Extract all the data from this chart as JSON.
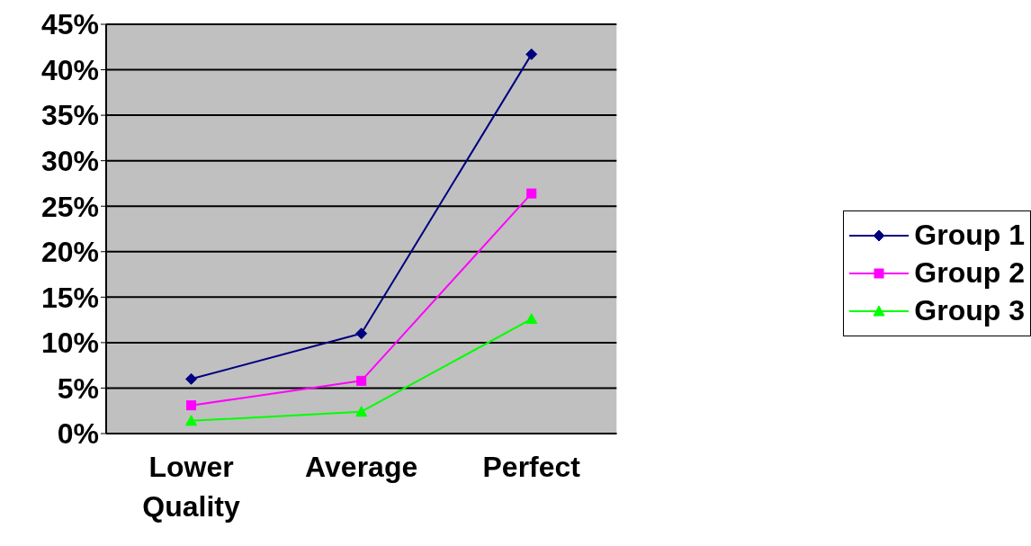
{
  "chart_data": {
    "type": "line",
    "categories": [
      "Lower Quality",
      "Average",
      "Perfect"
    ],
    "series": [
      {
        "name": "Group 1",
        "color": "#000080",
        "marker": "diamond",
        "values": [
          6.0,
          11.0,
          41.7
        ]
      },
      {
        "name": "Group 2",
        "color": "#ff00ff",
        "marker": "square",
        "values": [
          3.1,
          5.8,
          26.4
        ]
      },
      {
        "name": "Group 3",
        "color": "#00ff00",
        "marker": "triangle",
        "values": [
          1.4,
          2.4,
          12.6
        ]
      }
    ],
    "ylim": [
      0,
      45
    ],
    "yticks": [
      {
        "value": 0,
        "label": "0%"
      },
      {
        "value": 5,
        "label": "5%"
      },
      {
        "value": 10,
        "label": "10%"
      },
      {
        "value": 15,
        "label": "15%"
      },
      {
        "value": 20,
        "label": "20%"
      },
      {
        "value": 25,
        "label": "25%"
      },
      {
        "value": 30,
        "label": "30%"
      },
      {
        "value": 35,
        "label": "35%"
      },
      {
        "value": 40,
        "label": "40%"
      },
      {
        "value": 45,
        "label": "45%"
      }
    ],
    "grid": "y",
    "legend": "right",
    "line_style": "solid"
  }
}
